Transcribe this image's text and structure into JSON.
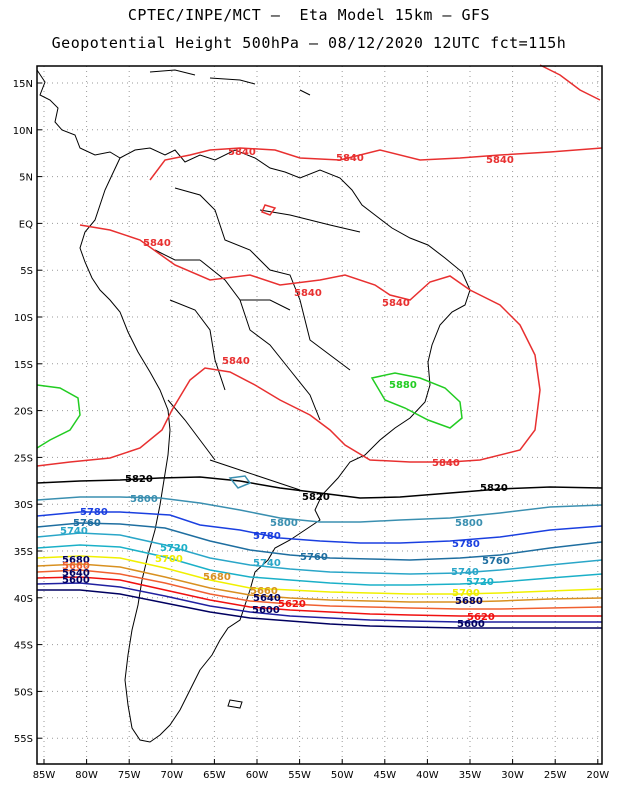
{
  "header": {
    "line1": "CPTEC/INPE/MCT –  Eta Model 15km – GFS",
    "line2": "Geopotential Height 500hPa – 08/12/2020 12UTC fct=115h"
  },
  "axes": {
    "lat_labels": [
      "15N",
      "10N",
      "5N",
      "EQ",
      "5S",
      "10S",
      "15S",
      "20S",
      "25S",
      "30S",
      "35S",
      "40S",
      "45S",
      "50S",
      "55S"
    ],
    "lon_labels": [
      "85W",
      "80W",
      "75W",
      "70W",
      "65W",
      "60W",
      "55W",
      "50W",
      "45W",
      "40W",
      "35W",
      "30W",
      "25W",
      "20W"
    ]
  },
  "colors": {
    "c5840": "#e83030",
    "c5880": "#22cc22",
    "c5820": "#000000",
    "c5800": "#3a8fb0",
    "c5780": "#1a3fe0",
    "c5760": "#1e6ea0",
    "c5740": "#2aa6c8",
    "c5720": "#1ab0c8",
    "c5700": "#f0f000",
    "c5680": "#d89020",
    "c5660": "#f06030",
    "c5640": "#f01010",
    "c5620": "#2020a0",
    "c5600": "#000060"
  },
  "contour_labels": [
    {
      "text": "5840",
      "color": "#e83030"
    },
    {
      "text": "5840",
      "color": "#e83030"
    },
    {
      "text": "5840",
      "color": "#e83030"
    },
    {
      "text": "5840",
      "color": "#e83030"
    },
    {
      "text": "5840",
      "color": "#e83030"
    },
    {
      "text": "5840",
      "color": "#e83030"
    },
    {
      "text": "5840",
      "color": "#e83030"
    },
    {
      "text": "5840",
      "color": "#e83030"
    },
    {
      "text": "5880",
      "color": "#22cc22"
    },
    {
      "text": "5820",
      "color": "#000000"
    },
    {
      "text": "5820",
      "color": "#000000"
    },
    {
      "text": "5820",
      "color": "#000000"
    },
    {
      "text": "5800",
      "color": "#3a8fb0"
    },
    {
      "text": "5800",
      "color": "#3a8fb0"
    },
    {
      "text": "5800",
      "color": "#3a8fb0"
    },
    {
      "text": "5780",
      "color": "#1a3fe0"
    },
    {
      "text": "5780",
      "color": "#1a3fe0"
    },
    {
      "text": "5780",
      "color": "#1a3fe0"
    },
    {
      "text": "5760",
      "color": "#1e6ea0"
    },
    {
      "text": "5760",
      "color": "#1e6ea0"
    },
    {
      "text": "5760",
      "color": "#1e6ea0"
    },
    {
      "text": "5740",
      "color": "#2aa6c8"
    },
    {
      "text": "5740",
      "color": "#2aa6c8"
    },
    {
      "text": "5740",
      "color": "#2aa6c8"
    },
    {
      "text": "5720",
      "color": "#1ab0c8"
    },
    {
      "text": "5720",
      "color": "#1ab0c8"
    },
    {
      "text": "5700",
      "color": "#f0f000"
    },
    {
      "text": "5700",
      "color": "#f0f000"
    },
    {
      "text": "5680",
      "color": "#000060"
    },
    {
      "text": "5680",
      "color": "#d89020"
    },
    {
      "text": "5680",
      "color": "#000060"
    },
    {
      "text": "5660",
      "color": "#f06030"
    },
    {
      "text": "5660",
      "color": "#d89020"
    },
    {
      "text": "5640",
      "color": "#000060"
    },
    {
      "text": "5640",
      "color": "#000060"
    },
    {
      "text": "5620",
      "color": "#f01010"
    },
    {
      "text": "5620",
      "color": "#f01010"
    },
    {
      "text": "5600",
      "color": "#000060"
    },
    {
      "text": "5600",
      "color": "#000060"
    },
    {
      "text": "5600",
      "color": "#000060"
    }
  ]
}
